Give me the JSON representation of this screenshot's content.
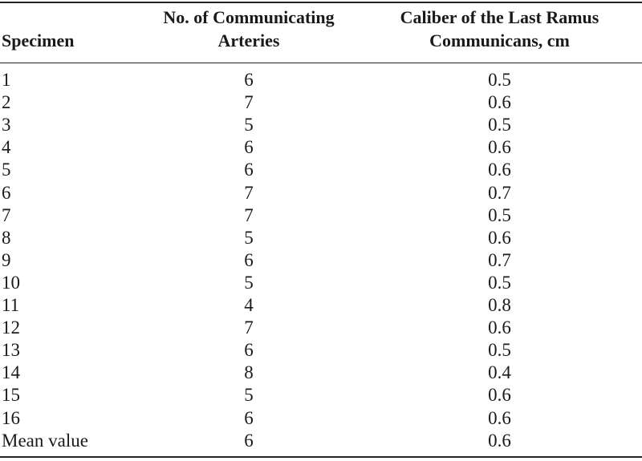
{
  "table": {
    "header": [
      [
        "Specimen"
      ],
      [
        "No. of Communicating",
        "Arteries"
      ],
      [
        "Caliber of the Last Ramus",
        "Communicans, cm"
      ]
    ],
    "rows": [
      [
        "1",
        "6",
        "0.5"
      ],
      [
        "2",
        "7",
        "0.6"
      ],
      [
        "3",
        "5",
        "0.5"
      ],
      [
        "4",
        "6",
        "0.6"
      ],
      [
        "5",
        "6",
        "0.6"
      ],
      [
        "6",
        "7",
        "0.7"
      ],
      [
        "7",
        "7",
        "0.5"
      ],
      [
        "8",
        "5",
        "0.6"
      ],
      [
        "9",
        "6",
        "0.7"
      ],
      [
        "10",
        "5",
        "0.5"
      ],
      [
        "11",
        "4",
        "0.8"
      ],
      [
        "12",
        "7",
        "0.6"
      ],
      [
        "13",
        "6",
        "0.5"
      ],
      [
        "14",
        "8",
        "0.4"
      ],
      [
        "15",
        "5",
        "0.6"
      ],
      [
        "16",
        "6",
        "0.6"
      ],
      [
        "Mean value",
        "6",
        "0.6"
      ]
    ]
  }
}
